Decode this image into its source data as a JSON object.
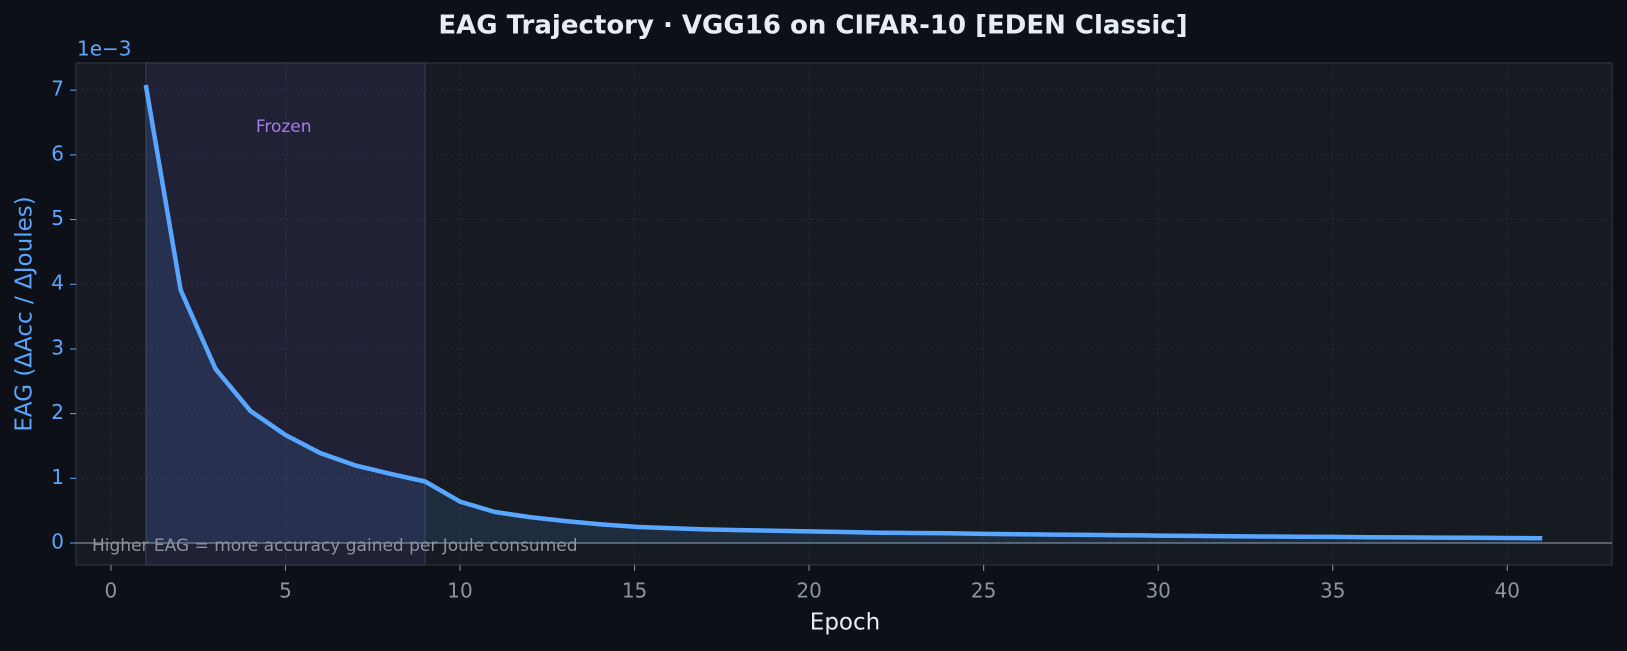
{
  "chart_data": {
    "type": "line",
    "title": "EAG Trajectory  ·  VGG16 on CIFAR-10  [EDEN Classic]",
    "x_label": "Epoch",
    "y_label": "EAG  (ΔAcc / ΔJoules)",
    "y_offset_label": "1e−3",
    "annotation": "Higher EAG = more accuracy gained per Joule consumed",
    "x": [
      1,
      2,
      3,
      4,
      5,
      6,
      7,
      8,
      9,
      10,
      11,
      12,
      13,
      14,
      15,
      16,
      17,
      18,
      19,
      20,
      21,
      22,
      23,
      24,
      25,
      26,
      27,
      28,
      29,
      30,
      31,
      32,
      33,
      34,
      35,
      36,
      37,
      38,
      39,
      40,
      41
    ],
    "series": [
      {
        "name": "EAG",
        "color": "#58a6ff",
        "values": [
          7.08,
          3.91,
          2.69,
          2.04,
          1.67,
          1.39,
          1.2,
          1.07,
          0.95,
          0.64,
          0.48,
          0.4,
          0.34,
          0.29,
          0.25,
          0.23,
          0.21,
          0.2,
          0.19,
          0.18,
          0.17,
          0.16,
          0.155,
          0.15,
          0.14,
          0.135,
          0.13,
          0.125,
          0.12,
          0.115,
          0.11,
          0.105,
          0.1,
          0.097,
          0.094,
          0.09,
          0.087,
          0.084,
          0.081,
          0.078,
          0.075
        ]
      }
    ],
    "shaded_regions": [
      {
        "label": "Frozen",
        "start": 1,
        "end": 9,
        "color": "#8957e5"
      }
    ],
    "reference_line": 0,
    "xlim": [
      -1,
      43
    ],
    "xticks": [
      0,
      5,
      10,
      15,
      20,
      25,
      30,
      35,
      40
    ],
    "ylim": [
      -0.34,
      7.42
    ],
    "yticks": [
      0,
      1,
      2,
      3,
      4,
      5,
      6,
      7
    ],
    "grid": true
  }
}
